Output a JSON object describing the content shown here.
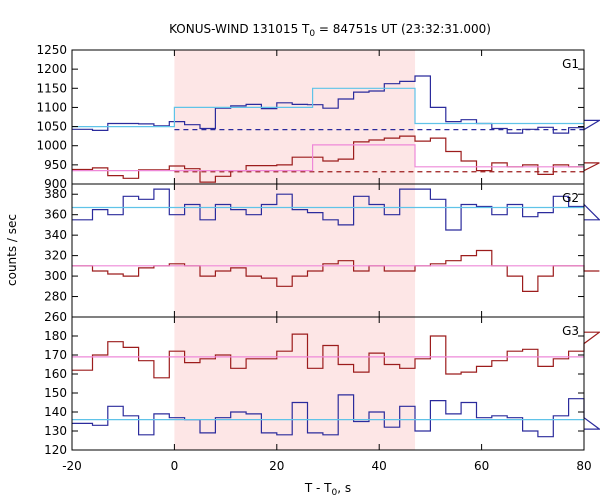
{
  "chart_data": {
    "type": "line",
    "title_main": "KONUS-WIND 131015 T",
    "title_sub": "0",
    "title_rest": " = 84751s UT (23:32:31.000)",
    "xlabel_main": "T - T",
    "xlabel_sub": "0",
    "xlabel_rest": ", s",
    "ylabel": "counts / sec",
    "xlim": [
      -20,
      80
    ],
    "xticks": [
      -20,
      0,
      20,
      40,
      60,
      80
    ],
    "highlight_interval": [
      0,
      47
    ],
    "highlight_color": "#fde6e6",
    "step": 3,
    "x_start": -19,
    "panels": [
      {
        "label": "G1",
        "ylim": [
          900,
          1250
        ],
        "yticks": [
          900,
          950,
          1000,
          1050,
          1100,
          1150,
          1200,
          1250
        ],
        "series": [
          {
            "color": "#2b2b9c",
            "values": [
              1043,
              1040,
              1058,
              1058,
              1057,
              1052,
              1063,
              1055,
              1045,
              1098,
              1104,
              1108,
              1097,
              1112,
              1108,
              1107,
              1098,
              1122,
              1140,
              1143,
              1162,
              1168,
              1182,
              1100,
              1063,
              1068,
              1058,
              1045,
              1033,
              1043,
              1048,
              1033,
              1047,
              1042,
              1066
            ]
          },
          {
            "color": "#9c1c1c",
            "values": [
              938,
              942,
              922,
              915,
              937,
              937,
              947,
              940,
              905,
              920,
              935,
              948,
              948,
              950,
              970,
              970,
              960,
              965,
              1010,
              1015,
              1020,
              1025,
              1012,
              1020,
              985,
              960,
              935,
              955,
              945,
              950,
              925,
              950,
              945,
              935,
              955
            ]
          }
        ],
        "fits": [
          {
            "color": "#5fc3e8",
            "segments": [
              {
                "x": [
                  -20,
                  0
                ],
                "y": 1050
              },
              {
                "x": [
                  0,
                  27
                ],
                "y": 1100
              },
              {
                "x": [
                  27,
                  47
                ],
                "y": 1150
              },
              {
                "x": [
                  47,
                  80
                ],
                "y": 1058
              }
            ]
          },
          {
            "color": "#ee88d8",
            "segments": [
              {
                "x": [
                  -20,
                  27
                ],
                "y": 935
              },
              {
                "x": [
                  27,
                  47
                ],
                "y": 1002
              },
              {
                "x": [
                  47,
                  80
                ],
                "y": 945
              }
            ]
          }
        ],
        "backgrounds": [
          {
            "color": "#2b2b9c",
            "x": [
              0,
              80
            ],
            "y": 1042
          },
          {
            "color": "#9c1c1c",
            "x": [
              0,
              80
            ],
            "y": 932
          }
        ]
      },
      {
        "label": "G2",
        "ylim": [
          260,
          390
        ],
        "yticks": [
          260,
          280,
          300,
          320,
          340,
          360,
          380
        ],
        "series": [
          {
            "color": "#2b2b9c",
            "values": [
              355,
              365,
              360,
              378,
              375,
              385,
              360,
              370,
              355,
              370,
              365,
              360,
              370,
              380,
              365,
              362,
              355,
              350,
              378,
              370,
              360,
              385,
              385,
              375,
              345,
              370,
              368,
              360,
              370,
              358,
              362,
              378,
              368,
              370,
              355
            ]
          },
          {
            "color": "#9c1c1c",
            "values": [
              310,
              305,
              302,
              300,
              308,
              310,
              312,
              310,
              300,
              305,
              308,
              300,
              298,
              290,
              300,
              305,
              312,
              315,
              305,
              310,
              305,
              305,
              310,
              312,
              315,
              320,
              325,
              310,
              300,
              285,
              300,
              310,
              310,
              305,
              305
            ]
          }
        ],
        "fits": [
          {
            "color": "#5fc3e8",
            "segments": [
              {
                "x": [
                  -20,
                  80
                ],
                "y": 367
              }
            ]
          },
          {
            "color": "#ee88d8",
            "segments": [
              {
                "x": [
                  -20,
                  80
                ],
                "y": 310
              }
            ]
          }
        ],
        "backgrounds": []
      },
      {
        "label": "G3",
        "ylim": [
          120,
          190
        ],
        "yticks": [
          120,
          130,
          140,
          150,
          160,
          170,
          180
        ],
        "series": [
          {
            "color": "#2b2b9c",
            "values": [
              134,
              133,
              143,
              138,
              128,
              139,
              137,
              136,
              129,
              137,
              140,
              139,
              129,
              128,
              145,
              129,
              128,
              149,
              135,
              140,
              132,
              143,
              130,
              146,
              139,
              145,
              137,
              138,
              137,
              130,
              127,
              138,
              147,
              137,
              131
            ]
          },
          {
            "color": "#9c1c1c",
            "values": [
              162,
              170,
              177,
              174,
              167,
              158,
              172,
              166,
              168,
              170,
              163,
              168,
              168,
              172,
              181,
              163,
              175,
              165,
              161,
              171,
              165,
              163,
              168,
              180,
              160,
              161,
              164,
              167,
              172,
              173,
              164,
              168,
              172,
              176,
              182
            ]
          }
        ],
        "fits": [
          {
            "color": "#5fc3e8",
            "segments": [
              {
                "x": [
                  -20,
                  80
                ],
                "y": 136
              }
            ]
          },
          {
            "color": "#ee88d8",
            "segments": [
              {
                "x": [
                  -20,
                  80
                ],
                "y": 169
              }
            ]
          }
        ],
        "backgrounds": []
      }
    ]
  }
}
